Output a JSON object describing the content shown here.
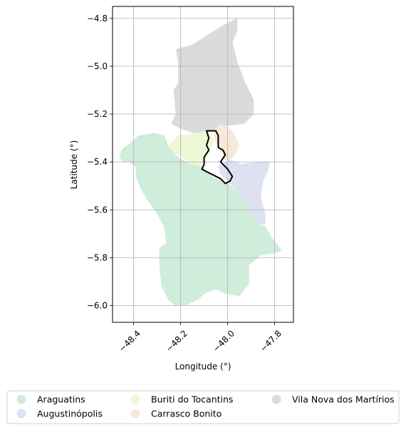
{
  "chart_data": {
    "type": "map",
    "xlabel": "Longitude (°)",
    "ylabel": "Latitude (°)",
    "xlim": [
      -48.49,
      -47.72
    ],
    "ylim": [
      -6.07,
      -4.75
    ],
    "x_ticks": [
      {
        "value": -48.4,
        "label": "−48.4"
      },
      {
        "value": -48.2,
        "label": "−48.2"
      },
      {
        "value": -48.0,
        "label": "−48.0"
      },
      {
        "value": -47.8,
        "label": "−47.8"
      }
    ],
    "y_ticks": [
      {
        "value": -4.8,
        "label": "−4.8"
      },
      {
        "value": -5.0,
        "label": "−5.0"
      },
      {
        "value": -5.2,
        "label": "−5.2"
      },
      {
        "value": -5.4,
        "label": "−5.4"
      },
      {
        "value": -5.6,
        "label": "−5.6"
      },
      {
        "value": -5.8,
        "label": "−5.8"
      },
      {
        "value": -6.0,
        "label": "−6.0"
      }
    ],
    "grid": true,
    "legend_position": "below",
    "legend_columns": 3,
    "regions": [
      {
        "name": "Vila Nova dos Martírios",
        "color": "#dbdbdb",
        "coords": [
          [
            -47.96,
            -4.8
          ],
          [
            -48.02,
            -4.83
          ],
          [
            -48.15,
            -4.91
          ],
          [
            -48.22,
            -4.93
          ],
          [
            -48.21,
            -4.98
          ],
          [
            -48.21,
            -5.07
          ],
          [
            -48.23,
            -5.1
          ],
          [
            -48.22,
            -5.2
          ],
          [
            -48.24,
            -5.24
          ],
          [
            -48.2,
            -5.26
          ],
          [
            -48.14,
            -5.28
          ],
          [
            -48.06,
            -5.27
          ],
          [
            -48.02,
            -5.25
          ],
          [
            -47.93,
            -5.24
          ],
          [
            -47.89,
            -5.2
          ],
          [
            -47.89,
            -5.14
          ],
          [
            -47.93,
            -5.06
          ],
          [
            -47.96,
            -4.98
          ],
          [
            -47.98,
            -4.9
          ],
          [
            -47.96,
            -4.85
          ]
        ]
      },
      {
        "name": "Buriti do Tocantins",
        "color": "#eef7d7",
        "coords": [
          [
            -48.25,
            -5.33
          ],
          [
            -48.21,
            -5.29
          ],
          [
            -48.14,
            -5.28
          ],
          [
            -48.08,
            -5.27
          ],
          [
            -48.06,
            -5.31
          ],
          [
            -48.08,
            -5.36
          ],
          [
            -48.1,
            -5.39
          ],
          [
            -48.11,
            -5.42
          ],
          [
            -48.16,
            -5.41
          ],
          [
            -48.19,
            -5.38
          ],
          [
            -48.23,
            -5.36
          ]
        ]
      },
      {
        "name": "Carrasco Bonito",
        "color": "#f7e8d9",
        "coords": [
          [
            -48.03,
            -5.24
          ],
          [
            -47.98,
            -5.27
          ],
          [
            -47.95,
            -5.33
          ],
          [
            -47.97,
            -5.37
          ],
          [
            -48.0,
            -5.4
          ],
          [
            -48.02,
            -5.37
          ],
          [
            -48.05,
            -5.32
          ],
          [
            -48.06,
            -5.27
          ]
        ]
      },
      {
        "name": "Augustinópolis",
        "color": "#dee1f2",
        "coords": [
          [
            -47.99,
            -5.39
          ],
          [
            -47.94,
            -5.41
          ],
          [
            -47.88,
            -5.4
          ],
          [
            -47.82,
            -5.4
          ],
          [
            -47.83,
            -5.44
          ],
          [
            -47.85,
            -5.48
          ],
          [
            -47.86,
            -5.55
          ],
          [
            -47.84,
            -5.62
          ],
          [
            -47.84,
            -5.66
          ],
          [
            -47.88,
            -5.66
          ],
          [
            -47.91,
            -5.59
          ],
          [
            -47.95,
            -5.53
          ],
          [
            -47.99,
            -5.49
          ],
          [
            -48.03,
            -5.45
          ],
          [
            -48.04,
            -5.42
          ]
        ]
      },
      {
        "name": "Araguatins",
        "color": "#d0ecdb",
        "coords": [
          [
            -48.44,
            -5.34
          ],
          [
            -48.41,
            -5.32
          ],
          [
            -48.38,
            -5.29
          ],
          [
            -48.31,
            -5.28
          ],
          [
            -48.27,
            -5.29
          ],
          [
            -48.25,
            -5.34
          ],
          [
            -48.21,
            -5.38
          ],
          [
            -48.16,
            -5.41
          ],
          [
            -48.11,
            -5.42
          ],
          [
            -48.07,
            -5.46
          ],
          [
            -48.0,
            -5.49
          ],
          [
            -47.95,
            -5.53
          ],
          [
            -47.91,
            -5.59
          ],
          [
            -47.87,
            -5.66
          ],
          [
            -47.84,
            -5.67
          ],
          [
            -47.81,
            -5.72
          ],
          [
            -47.77,
            -5.77
          ],
          [
            -47.8,
            -5.78
          ],
          [
            -47.86,
            -5.79
          ],
          [
            -47.91,
            -5.83
          ],
          [
            -47.91,
            -5.91
          ],
          [
            -47.95,
            -5.96
          ],
          [
            -48.01,
            -5.95
          ],
          [
            -48.05,
            -5.93
          ],
          [
            -48.1,
            -5.95
          ],
          [
            -48.12,
            -5.97
          ],
          [
            -48.18,
            -6.0
          ],
          [
            -48.22,
            -6.0
          ],
          [
            -48.25,
            -5.98
          ],
          [
            -48.28,
            -5.92
          ],
          [
            -48.29,
            -5.84
          ],
          [
            -48.29,
            -5.76
          ],
          [
            -48.26,
            -5.74
          ],
          [
            -48.27,
            -5.67
          ],
          [
            -48.31,
            -5.6
          ],
          [
            -48.34,
            -5.56
          ],
          [
            -48.37,
            -5.51
          ],
          [
            -48.39,
            -5.46
          ],
          [
            -48.39,
            -5.42
          ],
          [
            -48.42,
            -5.4
          ],
          [
            -48.45,
            -5.4
          ],
          [
            -48.46,
            -5.37
          ],
          [
            -48.45,
            -5.35
          ]
        ]
      }
    ],
    "highlight": {
      "color": "#000000",
      "coords": [
        [
          -48.09,
          -5.27
        ],
        [
          -48.05,
          -5.27
        ],
        [
          -48.04,
          -5.29
        ],
        [
          -48.04,
          -5.34
        ],
        [
          -48.02,
          -5.35
        ],
        [
          -48.01,
          -5.37
        ],
        [
          -48.03,
          -5.4
        ],
        [
          -48.0,
          -5.43
        ],
        [
          -47.98,
          -5.46
        ],
        [
          -47.99,
          -5.48
        ],
        [
          -48.01,
          -5.49
        ],
        [
          -48.03,
          -5.47
        ],
        [
          -48.05,
          -5.46
        ],
        [
          -48.09,
          -5.44
        ],
        [
          -48.11,
          -5.43
        ],
        [
          -48.1,
          -5.41
        ],
        [
          -48.1,
          -5.38
        ],
        [
          -48.08,
          -5.35
        ],
        [
          -48.09,
          -5.33
        ],
        [
          -48.08,
          -5.3
        ]
      ]
    },
    "legend": [
      {
        "label": "Araguatins",
        "color": "#d0ecdb"
      },
      {
        "label": "Augustinópolis",
        "color": "#dee1f2"
      },
      {
        "label": "Buriti do Tocantins",
        "color": "#eef7d7"
      },
      {
        "label": "Carrasco Bonito",
        "color": "#f7e8d9"
      },
      {
        "label": "Vila Nova dos Martírios",
        "color": "#dbdbdb"
      }
    ]
  }
}
